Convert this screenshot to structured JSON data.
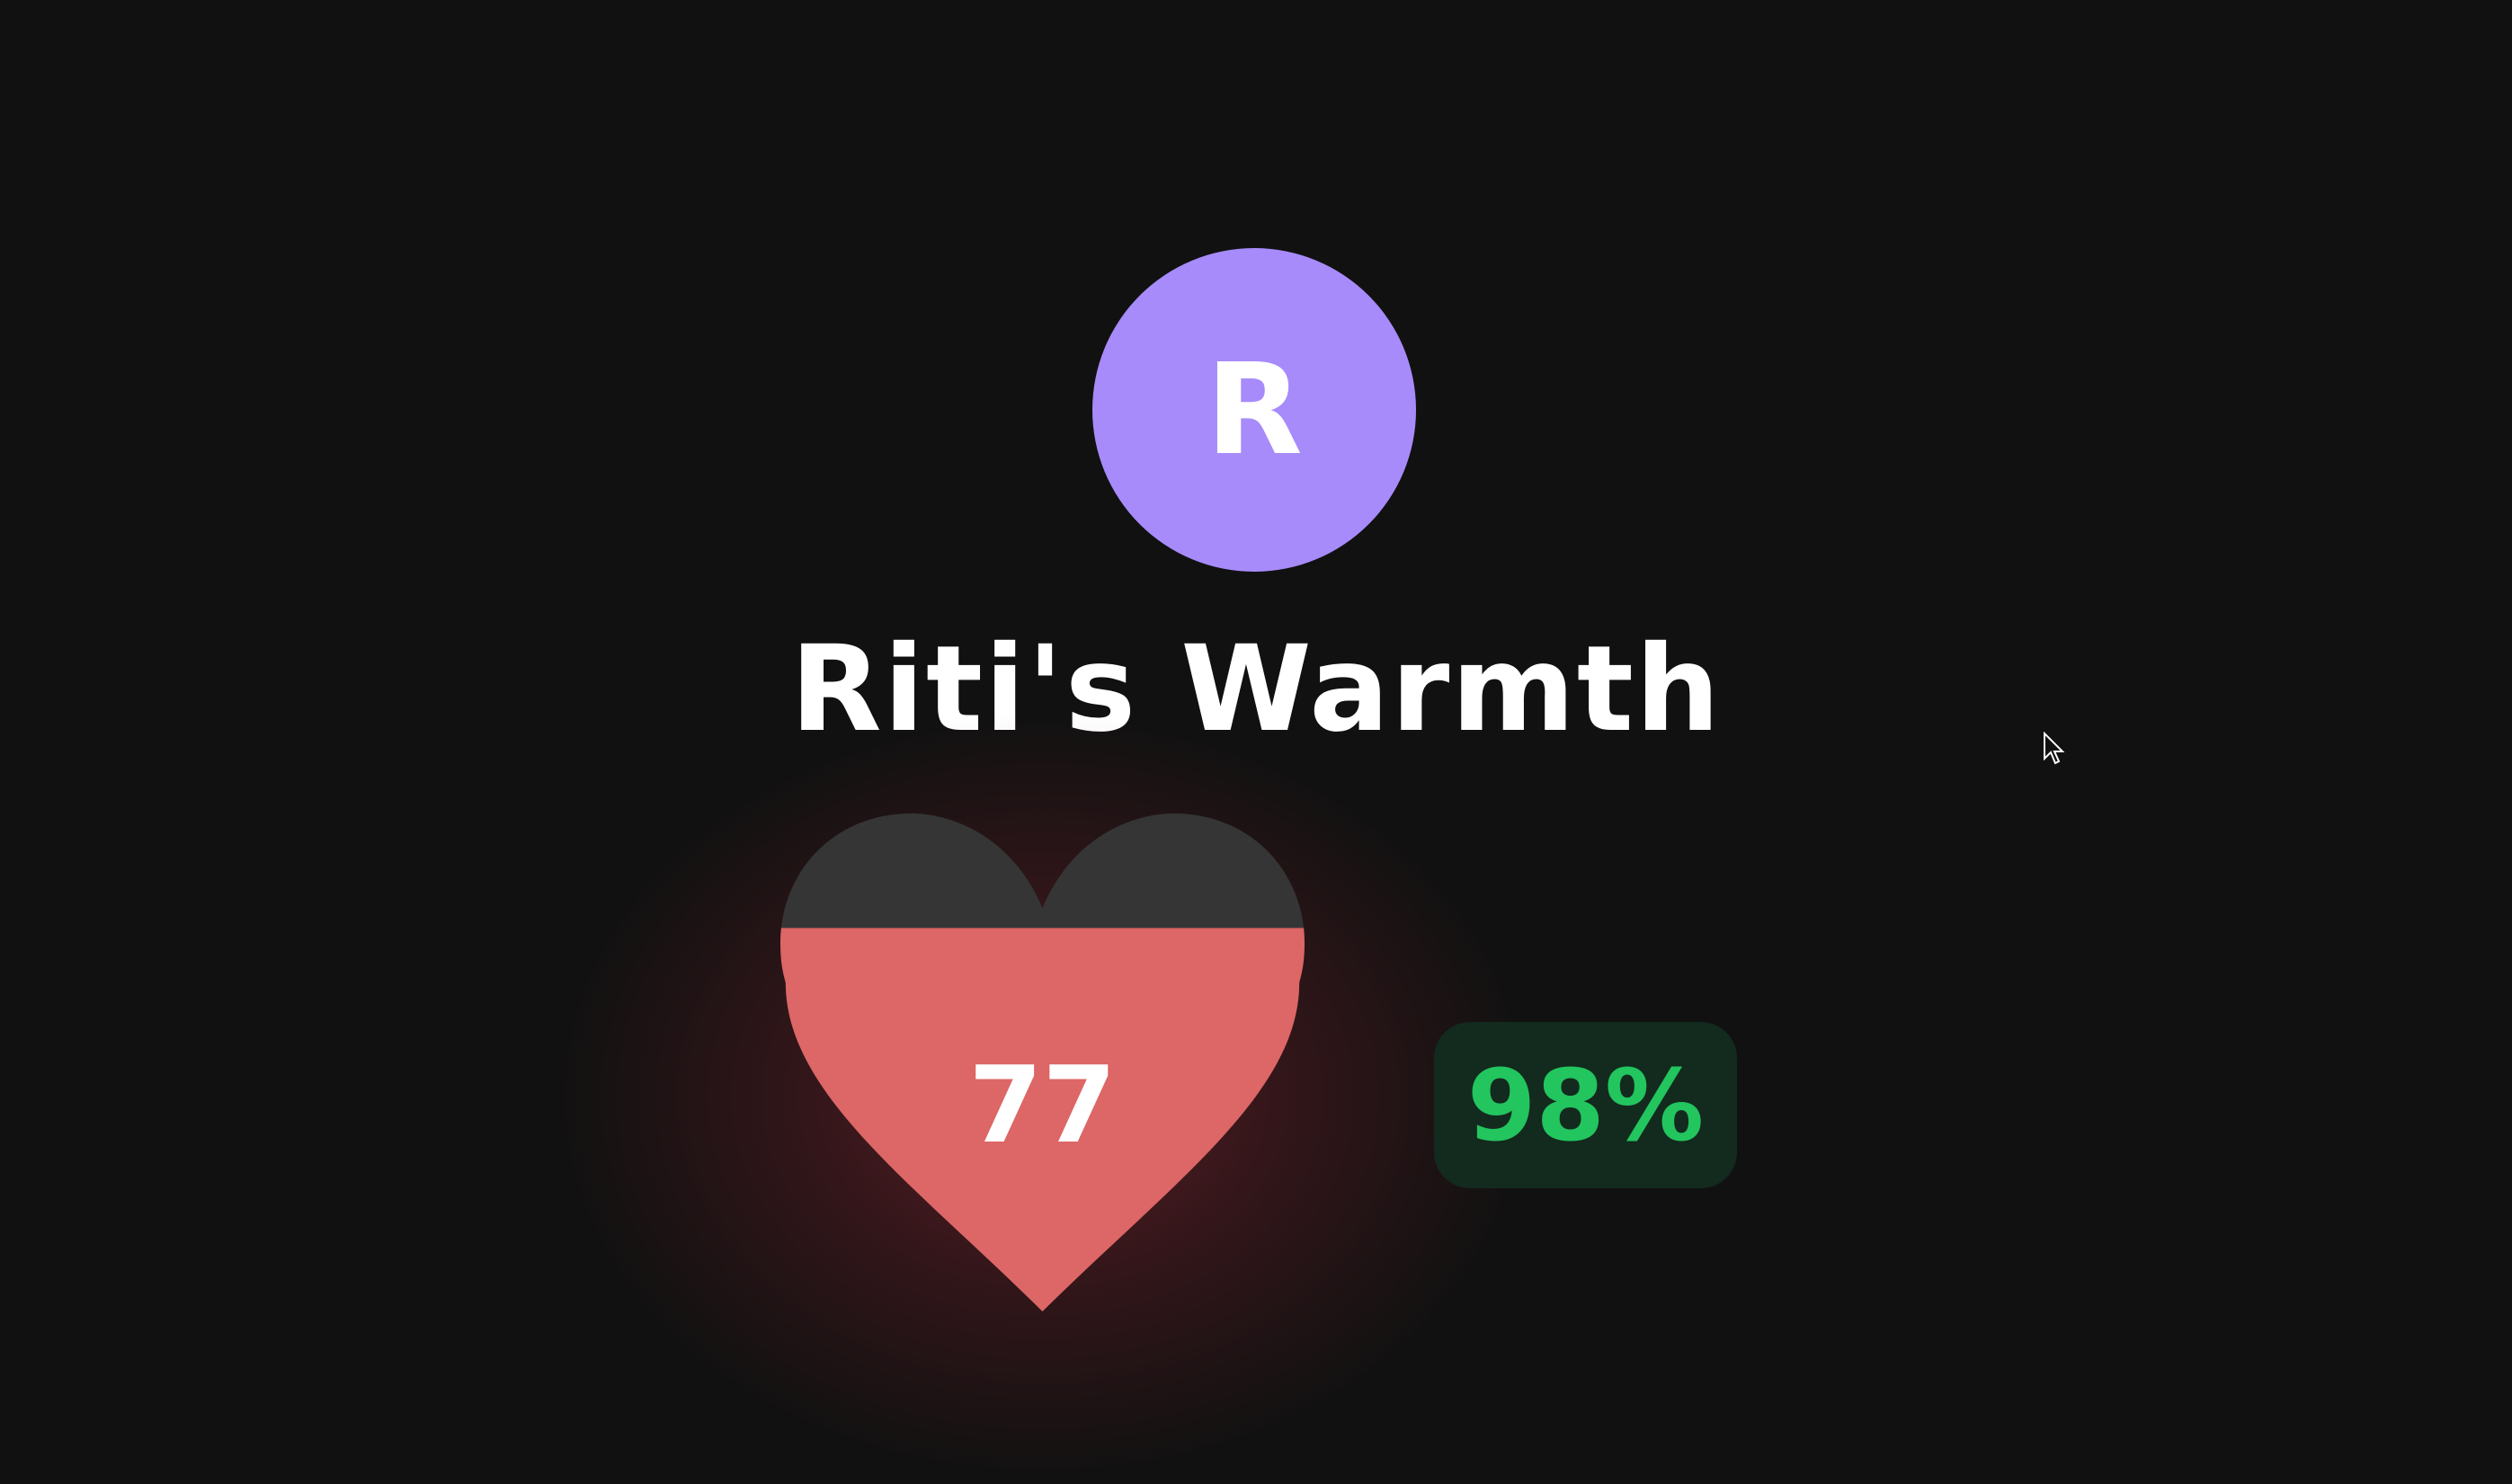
{
  "profile": {
    "initial": "R",
    "avatar_color": "#a78bfa",
    "title": "Riti's Warmth"
  },
  "warmth": {
    "value": "77",
    "fill_percent": 77,
    "fill_color": "#dd6666",
    "empty_color": "#353535"
  },
  "badge": {
    "text": "98%",
    "text_color": "#22c55e",
    "bg_color": "#132a1e"
  },
  "cursor": {
    "icon": "arrow-pointer-icon"
  }
}
